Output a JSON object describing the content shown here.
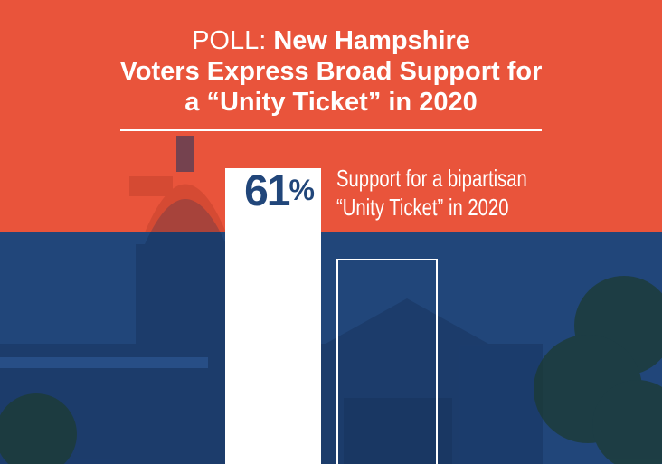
{
  "colors": {
    "top": "#e9543b",
    "bottom": "#21467a",
    "bar": "#ffffff"
  },
  "header": {
    "prefix": "POLL:",
    "line1": "New Hampshire",
    "line2": "Voters Express Broad Support for",
    "line3": "a “Unity Ticket” in 2020"
  },
  "chart_data": {
    "type": "bar",
    "categories": [
      "Support for a bipartisan “Unity Ticket” in 2020",
      ""
    ],
    "values": [
      61,
      null
    ],
    "ylim": [
      0,
      100
    ],
    "data_labels": [
      "61%",
      ""
    ],
    "category_label_lines": [
      "Support for a bipartisan",
      "“Unity Ticket” in 2020"
    ]
  }
}
